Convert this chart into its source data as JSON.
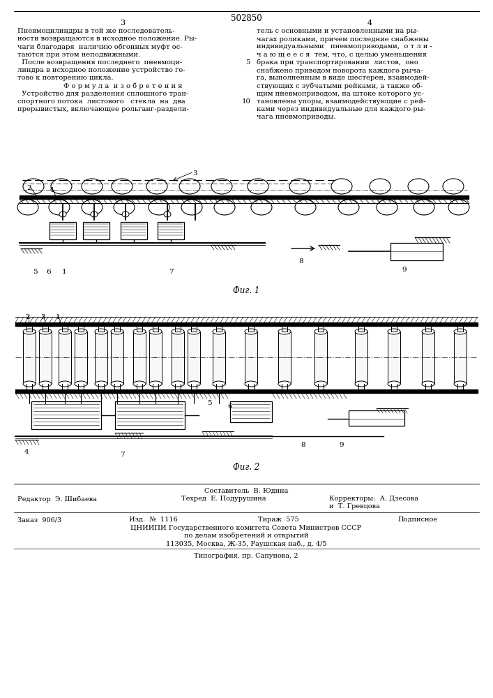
{
  "patent_number": "502850",
  "page_numbers": [
    "3",
    "4"
  ],
  "col1_text": [
    "Пневмоцилиндры в той же последователь-",
    "ности возвращаются в исходное положение. Ры-",
    "чаги благодаря  наличию обгонных муфт ос-",
    "таются при этом неподвижными.",
    "  После возвращения последнего  пневмоци-",
    "линдра в исходное положение устройство го-",
    "тово к повторению цикла.",
    "Ф о р м у л а  и з о б р е т е н и я",
    "  Устройство для разделения сплошного тран-",
    "спортного потока  листового   стекла  на  два",
    "прерывистых, включающее рольганг-раздели-"
  ],
  "col2_text": [
    "тель с основными и установленными на ры-",
    "чагах роликами, причем последние снабжены",
    "индивидуальными   пневмоприводами,  о т л и -",
    "ч а ю щ е е с я  тем, что, с целью уменьшения",
    "брака при транспортировании  листов,  оно",
    "снабжено приводом поворота каждого рыча-",
    "га, выполненным в виде шестерен, взаимодей-",
    "ствующих с зубчатыми рейками, а также об-",
    "щим пневмоприводом, на штоке которого ус-",
    "тановлены упоры, взаимодействующие с рей-",
    "ками через индивидуальные для каждого ры-",
    "чага пневмоприводы."
  ],
  "fig1_caption": "Фиг. 1",
  "fig2_caption": "Фиг. 2",
  "sestavitel_line": "Составитель  В. Юдина",
  "editor_line": "Редактор  Э. Шибаева",
  "techred_line": "Техред  Е. Подурушина",
  "correctors_line": "Корректоры:  А. Дзесова",
  "corrector2_line": "и  Т. Гревцова",
  "order_line": "Заказ  906/3",
  "izd_line": "Изд.  №  1116",
  "tirazh_line": "Тираж  575",
  "podpisnoe_line": "Подписное",
  "cniip_line": "ЦНИИПИ Государственного комитета Совета Министров СССР",
  "cniip_line2": "по делам изобретений и открытий",
  "cniip_line3": "113035, Москва, Ж-35, Раушская наб., д. 4/5",
  "typography_line": "Типография, пр. Сапунова, 2",
  "bg_color": "#ffffff",
  "text_color": "#000000"
}
